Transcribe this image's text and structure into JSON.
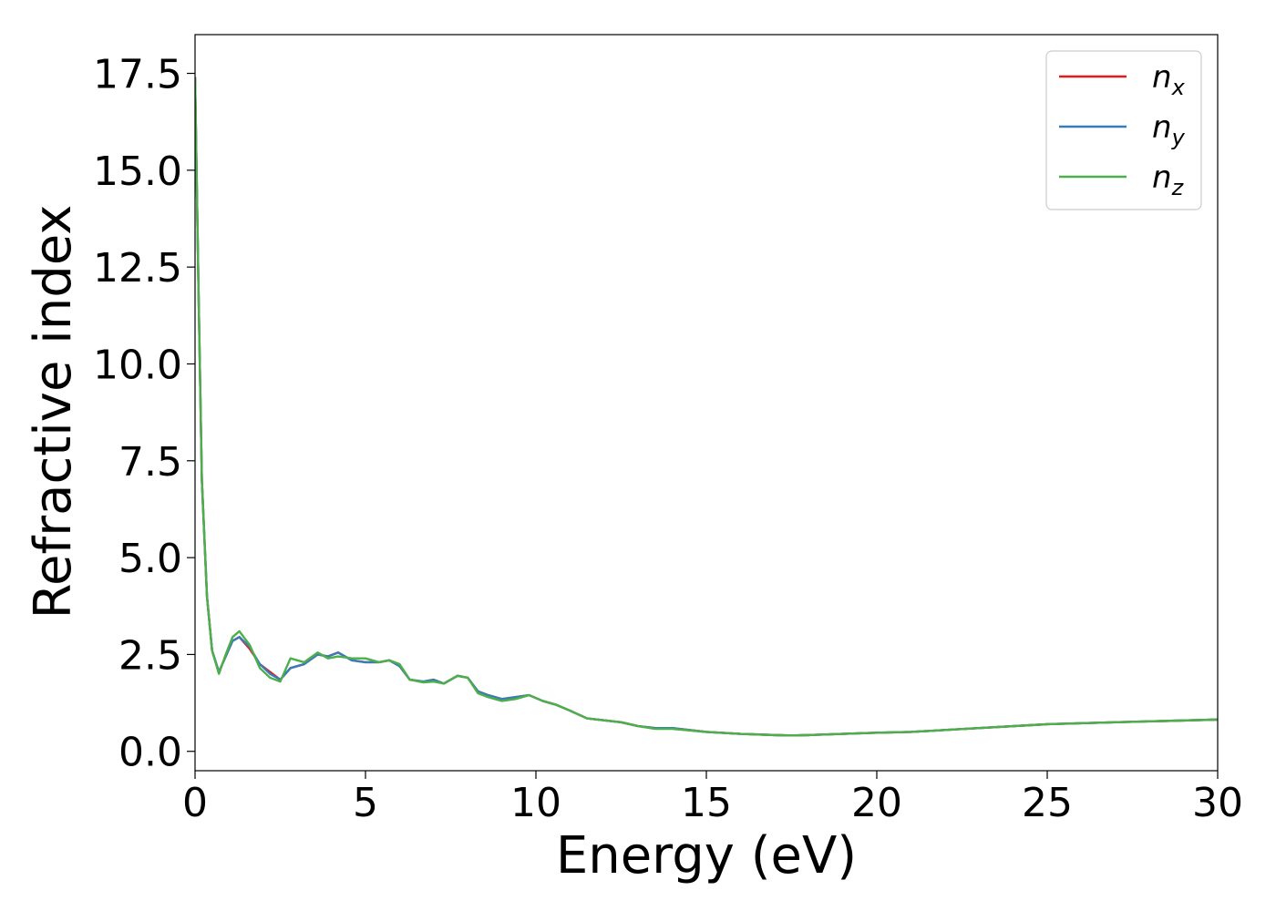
{
  "chart_data": {
    "type": "line",
    "title": "",
    "xlabel": "Energy (eV)",
    "ylabel": "Refractive index",
    "xlim": [
      0,
      30
    ],
    "ylim": [
      -0.5,
      18.5
    ],
    "xticks": [
      "0",
      "5",
      "10",
      "15",
      "20",
      "25",
      "30"
    ],
    "yticks": [
      "0.0",
      "2.5",
      "5.0",
      "7.5",
      "10.0",
      "12.5",
      "15.0",
      "17.5"
    ],
    "legend_position": "top-right",
    "grid": false,
    "series": [
      {
        "name": "n",
        "subscript": "x",
        "color": "#e41a1c",
        "x": [
          0,
          0.1,
          0.2,
          0.35,
          0.5,
          0.7,
          0.9,
          1.1,
          1.3,
          1.6,
          1.9,
          2.2,
          2.5,
          2.8,
          3.2,
          3.6,
          3.9,
          4.2,
          4.6,
          5.0,
          5.4,
          5.7,
          6.0,
          6.3,
          6.7,
          7.0,
          7.3,
          7.7,
          8.0,
          8.3,
          8.6,
          9.0,
          9.4,
          9.8,
          10.2,
          10.6,
          11.0,
          11.5,
          12.0,
          12.5,
          13.0,
          13.5,
          14.0,
          15.0,
          16.0,
          17.0,
          17.5,
          18.0,
          19.0,
          20.0,
          21.0,
          22.0,
          23.0,
          25.0,
          27.0,
          30.0
        ],
        "y": [
          17.4,
          12.0,
          7.0,
          4.0,
          2.6,
          2.05,
          2.45,
          2.85,
          2.95,
          2.65,
          2.25,
          2.05,
          1.85,
          2.15,
          2.25,
          2.5,
          2.45,
          2.55,
          2.35,
          2.3,
          2.3,
          2.35,
          2.2,
          1.85,
          1.8,
          1.85,
          1.75,
          1.95,
          1.9,
          1.55,
          1.45,
          1.35,
          1.4,
          1.45,
          1.3,
          1.2,
          1.05,
          0.85,
          0.8,
          0.75,
          0.65,
          0.6,
          0.6,
          0.5,
          0.45,
          0.42,
          0.41,
          0.42,
          0.45,
          0.48,
          0.5,
          0.55,
          0.6,
          0.7,
          0.75,
          0.82
        ]
      },
      {
        "name": "n",
        "subscript": "y",
        "color": "#377eb8",
        "x": [
          0,
          0.1,
          0.2,
          0.35,
          0.5,
          0.7,
          0.9,
          1.1,
          1.3,
          1.6,
          1.9,
          2.2,
          2.5,
          2.8,
          3.2,
          3.6,
          3.9,
          4.2,
          4.6,
          5.0,
          5.4,
          5.7,
          6.0,
          6.3,
          6.7,
          7.0,
          7.3,
          7.7,
          8.0,
          8.3,
          8.6,
          9.0,
          9.4,
          9.8,
          10.2,
          10.6,
          11.0,
          11.5,
          12.0,
          12.5,
          13.0,
          13.5,
          14.0,
          15.0,
          16.0,
          17.0,
          17.5,
          18.0,
          19.0,
          20.0,
          21.0,
          22.0,
          23.0,
          25.0,
          27.0,
          30.0
        ],
        "y": [
          17.4,
          12.0,
          7.0,
          4.0,
          2.6,
          2.05,
          2.45,
          2.85,
          2.95,
          2.7,
          2.25,
          2.0,
          1.85,
          2.15,
          2.25,
          2.5,
          2.45,
          2.55,
          2.35,
          2.3,
          2.3,
          2.35,
          2.2,
          1.85,
          1.8,
          1.85,
          1.75,
          1.95,
          1.9,
          1.55,
          1.45,
          1.35,
          1.4,
          1.45,
          1.3,
          1.2,
          1.05,
          0.85,
          0.8,
          0.75,
          0.65,
          0.6,
          0.6,
          0.5,
          0.45,
          0.42,
          0.41,
          0.42,
          0.45,
          0.48,
          0.5,
          0.55,
          0.6,
          0.7,
          0.75,
          0.82
        ]
      },
      {
        "name": "n",
        "subscript": "z",
        "color": "#4daf4a",
        "x": [
          0,
          0.1,
          0.2,
          0.35,
          0.5,
          0.7,
          0.9,
          1.1,
          1.3,
          1.6,
          1.9,
          2.2,
          2.5,
          2.8,
          3.2,
          3.6,
          3.9,
          4.2,
          4.6,
          5.0,
          5.4,
          5.7,
          6.0,
          6.3,
          6.7,
          7.0,
          7.3,
          7.7,
          8.0,
          8.3,
          8.6,
          9.0,
          9.4,
          9.8,
          10.2,
          10.6,
          11.0,
          11.5,
          12.0,
          12.5,
          13.0,
          13.5,
          14.0,
          15.0,
          16.0,
          17.0,
          17.5,
          18.0,
          19.0,
          20.0,
          21.0,
          22.0,
          23.0,
          25.0,
          27.0,
          30.0
        ],
        "y": [
          17.4,
          12.0,
          7.0,
          4.0,
          2.6,
          2.0,
          2.5,
          2.95,
          3.1,
          2.75,
          2.15,
          1.9,
          1.8,
          2.4,
          2.3,
          2.55,
          2.4,
          2.45,
          2.4,
          2.4,
          2.3,
          2.35,
          2.25,
          1.85,
          1.78,
          1.8,
          1.75,
          1.95,
          1.9,
          1.5,
          1.4,
          1.3,
          1.35,
          1.45,
          1.3,
          1.2,
          1.05,
          0.85,
          0.8,
          0.75,
          0.65,
          0.58,
          0.58,
          0.5,
          0.45,
          0.42,
          0.41,
          0.42,
          0.45,
          0.48,
          0.5,
          0.55,
          0.6,
          0.7,
          0.75,
          0.82
        ]
      }
    ]
  }
}
